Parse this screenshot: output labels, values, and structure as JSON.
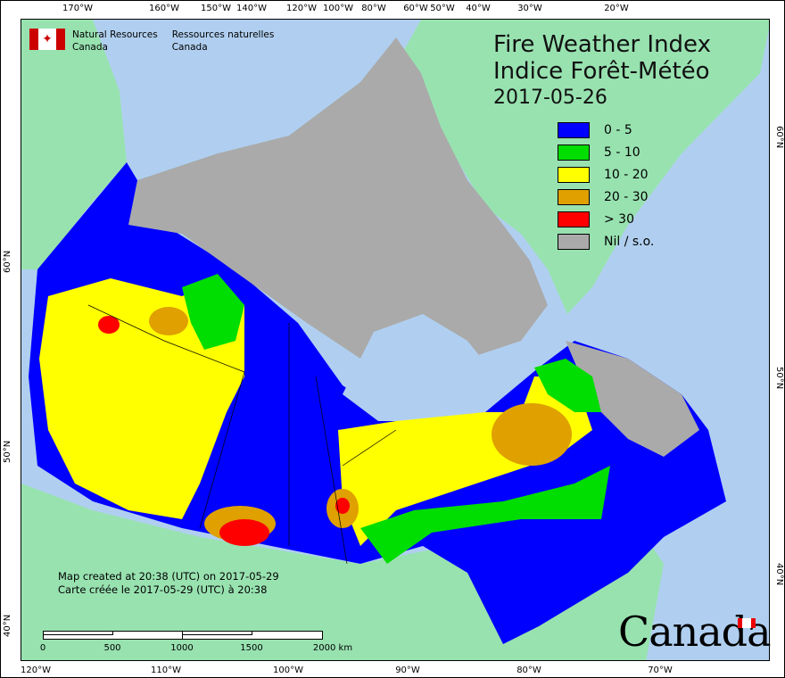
{
  "header": {
    "org_en_1": "Natural Resources",
    "org_en_2": "Canada",
    "org_fr_1": "Ressources naturelles",
    "org_fr_2": "Canada"
  },
  "title": {
    "en": "Fire Weather Index",
    "fr": "Indice Forêt-Météo",
    "date": "2017-05-26"
  },
  "legend": [
    {
      "label": "0 - 5",
      "color": "#0000ff"
    },
    {
      "label": "5 - 10",
      "color": "#00dd00"
    },
    {
      "label": "10 - 20",
      "color": "#ffff00"
    },
    {
      "label": "20 - 30",
      "color": "#dfa000"
    },
    {
      "label": "> 30",
      "color": "#ff0000"
    },
    {
      "label": "Nil / s.o.",
      "color": "#aaaaaa"
    }
  ],
  "credit": {
    "en": "Map created at 20:38 (UTC) on 2017-05-29",
    "fr": "Carte créée le 2017-05-29 (UTC) à 20:38"
  },
  "scale": {
    "labels": [
      "0",
      "500",
      "1000",
      "1500",
      "2000  km"
    ]
  },
  "axes": {
    "top": [
      "170°W",
      "160°W",
      "150°W",
      "140°W",
      "120°W",
      "100°W",
      "80°W",
      "60°W",
      "50°W",
      "40°W",
      "30°W",
      "20°W"
    ],
    "bottom": [
      "120°W",
      "110°W",
      "100°W",
      "90°W",
      "80°W",
      "70°W"
    ],
    "left": [
      "60°N",
      "50°N",
      "40°N"
    ],
    "right": [
      "60°N",
      "50°N",
      "40°N"
    ]
  },
  "wordmark": "Canada",
  "colors": {
    "water": "#b0cff0",
    "foreign_land": "#98e2b0",
    "nil": "#aaaaaa"
  }
}
